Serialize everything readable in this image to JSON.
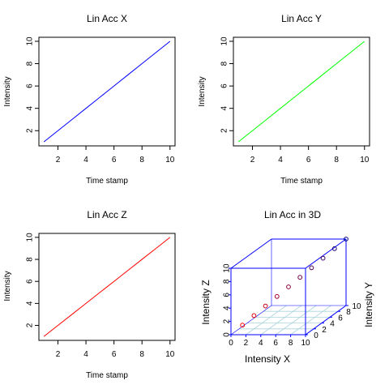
{
  "chart_data": [
    {
      "type": "line",
      "title": "Lin Acc X",
      "xlabel": "Time stamp",
      "ylabel": "Intensity",
      "xticks": [
        2,
        4,
        6,
        8,
        10
      ],
      "yticks": [
        2,
        4,
        6,
        8,
        10
      ],
      "xlim": [
        0.64,
        10.36
      ],
      "ylim": [
        0.64,
        10.36
      ],
      "color": "#0000ff",
      "series": [
        {
          "x": [
            1,
            2,
            3,
            4,
            5,
            6,
            7,
            8,
            9,
            10
          ],
          "y": [
            1,
            2,
            3,
            4,
            5,
            6,
            7,
            8,
            9,
            10
          ]
        }
      ]
    },
    {
      "type": "line",
      "title": "Lin Acc Y",
      "xlabel": "Time stamp",
      "ylabel": "Intensity",
      "xticks": [
        2,
        4,
        6,
        8,
        10
      ],
      "yticks": [
        2,
        4,
        6,
        8,
        10
      ],
      "xlim": [
        0.64,
        10.36
      ],
      "ylim": [
        0.64,
        10.36
      ],
      "color": "#00ff00",
      "series": [
        {
          "x": [
            1,
            2,
            3,
            4,
            5,
            6,
            7,
            8,
            9,
            10
          ],
          "y": [
            1,
            2,
            3,
            4,
            5,
            6,
            7,
            8,
            9,
            10
          ]
        }
      ]
    },
    {
      "type": "line",
      "title": "Lin Acc Z",
      "xlabel": "Time stamp",
      "ylabel": "Intensity",
      "xticks": [
        2,
        4,
        6,
        8,
        10
      ],
      "yticks": [
        2,
        4,
        6,
        8,
        10
      ],
      "xlim": [
        0.64,
        10.36
      ],
      "ylim": [
        0.64,
        10.36
      ],
      "color": "#ff0000",
      "series": [
        {
          "x": [
            1,
            2,
            3,
            4,
            5,
            6,
            7,
            8,
            9,
            10
          ],
          "y": [
            1,
            2,
            3,
            4,
            5,
            6,
            7,
            8,
            9,
            10
          ]
        }
      ]
    },
    {
      "type": "scatter",
      "title": "Lin Acc in 3D",
      "xlabel": "Intensity X",
      "ylabel": "Intensity Y",
      "zlabel": "Intensity Z",
      "xticks": [
        0,
        2,
        4,
        6,
        8,
        10
      ],
      "yticks": [
        0,
        2,
        4,
        6,
        8,
        10
      ],
      "zticks": [
        0,
        2,
        4,
        6,
        8,
        10
      ],
      "xlim": [
        0,
        10
      ],
      "ylim": [
        0,
        10
      ],
      "zlim": [
        0,
        10
      ],
      "box_color": "#0000ff",
      "grid_color": "#aad4dd",
      "points": {
        "x": [
          1,
          2,
          3,
          4,
          5,
          6,
          7,
          8,
          9,
          10
        ],
        "y": [
          1,
          2,
          3,
          4,
          5,
          6,
          7,
          8,
          9,
          10
        ],
        "z": [
          1,
          2,
          3,
          4,
          5,
          6,
          7,
          8,
          9,
          10
        ]
      }
    }
  ]
}
